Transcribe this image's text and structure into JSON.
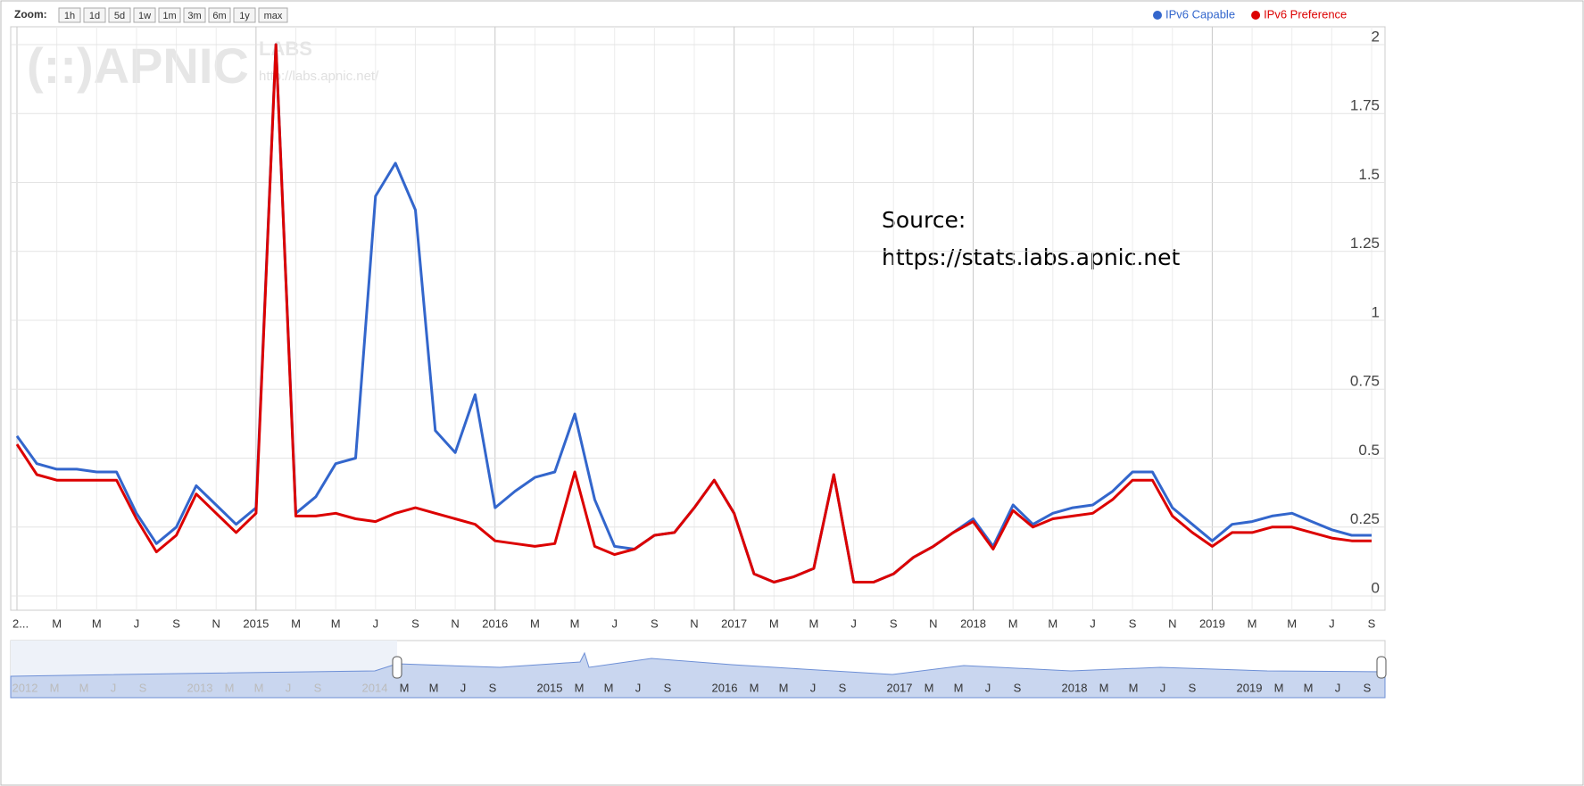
{
  "zoom": {
    "label": "Zoom:",
    "buttons": [
      "1h",
      "1d",
      "5d",
      "1w",
      "1m",
      "3m",
      "6m",
      "1y",
      "max"
    ]
  },
  "watermark": {
    "logo": "(::)APNIC",
    "labs": "LABS",
    "url": "http://labs.apnic.net/"
  },
  "annotation": [
    "Source:",
    "https://stats.labs.apnic.net"
  ],
  "navigator": {
    "years": [
      "2012",
      "2013",
      "2014",
      "2015",
      "2016",
      "2017",
      "2018",
      "2019"
    ],
    "months": [
      "M",
      "M",
      "J",
      "S"
    ]
  },
  "chart_data": {
    "type": "line",
    "x": [
      "2014-01",
      "2014-02",
      "2014-03",
      "2014-04",
      "2014-05",
      "2014-06",
      "2014-07",
      "2014-08",
      "2014-09",
      "2014-10",
      "2014-11",
      "2014-12",
      "2015-01",
      "2015-02",
      "2015-03",
      "2015-04",
      "2015-05",
      "2015-06",
      "2015-07",
      "2015-08",
      "2015-09",
      "2015-10",
      "2015-11",
      "2015-12",
      "2016-01",
      "2016-02",
      "2016-03",
      "2016-04",
      "2016-05",
      "2016-06",
      "2016-07",
      "2016-08",
      "2016-09",
      "2016-10",
      "2016-11",
      "2016-12",
      "2017-01",
      "2017-02",
      "2017-03",
      "2017-04",
      "2017-05",
      "2017-06",
      "2017-07",
      "2017-08",
      "2017-09",
      "2017-10",
      "2017-11",
      "2017-12",
      "2018-01",
      "2018-02",
      "2018-03",
      "2018-04",
      "2018-05",
      "2018-06",
      "2018-07",
      "2018-08",
      "2018-09",
      "2018-10",
      "2018-11",
      "2018-12",
      "2019-01",
      "2019-02",
      "2019-03",
      "2019-04",
      "2019-05",
      "2019-06",
      "2019-07",
      "2019-08",
      "2019-09"
    ],
    "series": [
      {
        "name": "IPv6 Capable",
        "color": "#3366cc",
        "values": [
          0.58,
          0.48,
          0.46,
          0.46,
          0.45,
          0.45,
          0.3,
          0.19,
          0.25,
          0.4,
          0.33,
          0.26,
          0.32,
          2.0,
          0.3,
          0.36,
          0.48,
          0.5,
          1.45,
          1.57,
          1.4,
          0.6,
          0.52,
          0.73,
          0.32,
          0.38,
          0.43,
          0.45,
          0.66,
          0.35,
          0.18,
          0.17,
          0.22,
          0.23,
          0.32,
          0.42,
          0.3,
          0.08,
          0.05,
          0.07,
          0.1,
          0.44,
          0.05,
          0.05,
          0.08,
          0.14,
          0.18,
          0.23,
          0.28,
          0.18,
          0.33,
          0.26,
          0.3,
          0.32,
          0.33,
          0.38,
          0.45,
          0.45,
          0.32,
          0.26,
          0.2,
          0.26,
          0.27,
          0.29,
          0.3,
          0.27,
          0.24,
          0.22,
          0.22
        ]
      },
      {
        "name": "IPv6 Preference",
        "color": "#dc0000",
        "values": [
          0.55,
          0.44,
          0.42,
          0.42,
          0.42,
          0.42,
          0.28,
          0.16,
          0.22,
          0.37,
          0.3,
          0.23,
          0.3,
          2.0,
          0.29,
          0.29,
          0.3,
          0.28,
          0.27,
          0.3,
          0.32,
          0.3,
          0.28,
          0.26,
          0.2,
          0.19,
          0.18,
          0.19,
          0.45,
          0.18,
          0.15,
          0.17,
          0.22,
          0.23,
          0.32,
          0.42,
          0.3,
          0.08,
          0.05,
          0.07,
          0.1,
          0.44,
          0.05,
          0.05,
          0.08,
          0.14,
          0.18,
          0.23,
          0.27,
          0.17,
          0.31,
          0.25,
          0.28,
          0.29,
          0.3,
          0.35,
          0.42,
          0.42,
          0.29,
          0.23,
          0.18,
          0.23,
          0.23,
          0.25,
          0.25,
          0.23,
          0.21,
          0.2,
          0.2
        ]
      }
    ],
    "xlim": [
      "2014-01",
      "2019-09"
    ],
    "xticks": [
      {
        "value": "2014-01",
        "label": "2..."
      },
      {
        "value": "2014-03",
        "label": "M"
      },
      {
        "value": "2014-05",
        "label": "M"
      },
      {
        "value": "2014-07",
        "label": "J"
      },
      {
        "value": "2014-09",
        "label": "S"
      },
      {
        "value": "2014-11",
        "label": "N"
      },
      {
        "value": "2015-01",
        "label": "2015"
      },
      {
        "value": "2015-03",
        "label": "M"
      },
      {
        "value": "2015-05",
        "label": "M"
      },
      {
        "value": "2015-07",
        "label": "J"
      },
      {
        "value": "2015-09",
        "label": "S"
      },
      {
        "value": "2015-11",
        "label": "N"
      },
      {
        "value": "2016-01",
        "label": "2016"
      },
      {
        "value": "2016-03",
        "label": "M"
      },
      {
        "value": "2016-05",
        "label": "M"
      },
      {
        "value": "2016-07",
        "label": "J"
      },
      {
        "value": "2016-09",
        "label": "S"
      },
      {
        "value": "2016-11",
        "label": "N"
      },
      {
        "value": "2017-01",
        "label": "2017"
      },
      {
        "value": "2017-03",
        "label": "M"
      },
      {
        "value": "2017-05",
        "label": "M"
      },
      {
        "value": "2017-07",
        "label": "J"
      },
      {
        "value": "2017-09",
        "label": "S"
      },
      {
        "value": "2017-11",
        "label": "N"
      },
      {
        "value": "2018-01",
        "label": "2018"
      },
      {
        "value": "2018-03",
        "label": "M"
      },
      {
        "value": "2018-05",
        "label": "M"
      },
      {
        "value": "2018-07",
        "label": "J"
      },
      {
        "value": "2018-09",
        "label": "S"
      },
      {
        "value": "2018-11",
        "label": "N"
      },
      {
        "value": "2019-01",
        "label": "2019"
      },
      {
        "value": "2019-03",
        "label": "M"
      },
      {
        "value": "2019-05",
        "label": "M"
      },
      {
        "value": "2019-07",
        "label": "J"
      },
      {
        "value": "2019-09",
        "label": "S"
      }
    ],
    "ylim": [
      0,
      2
    ],
    "yticks": [
      0,
      0.25,
      0.5,
      0.75,
      1,
      1.25,
      1.5,
      1.75,
      2
    ],
    "grid": true,
    "legend": "top-right"
  }
}
